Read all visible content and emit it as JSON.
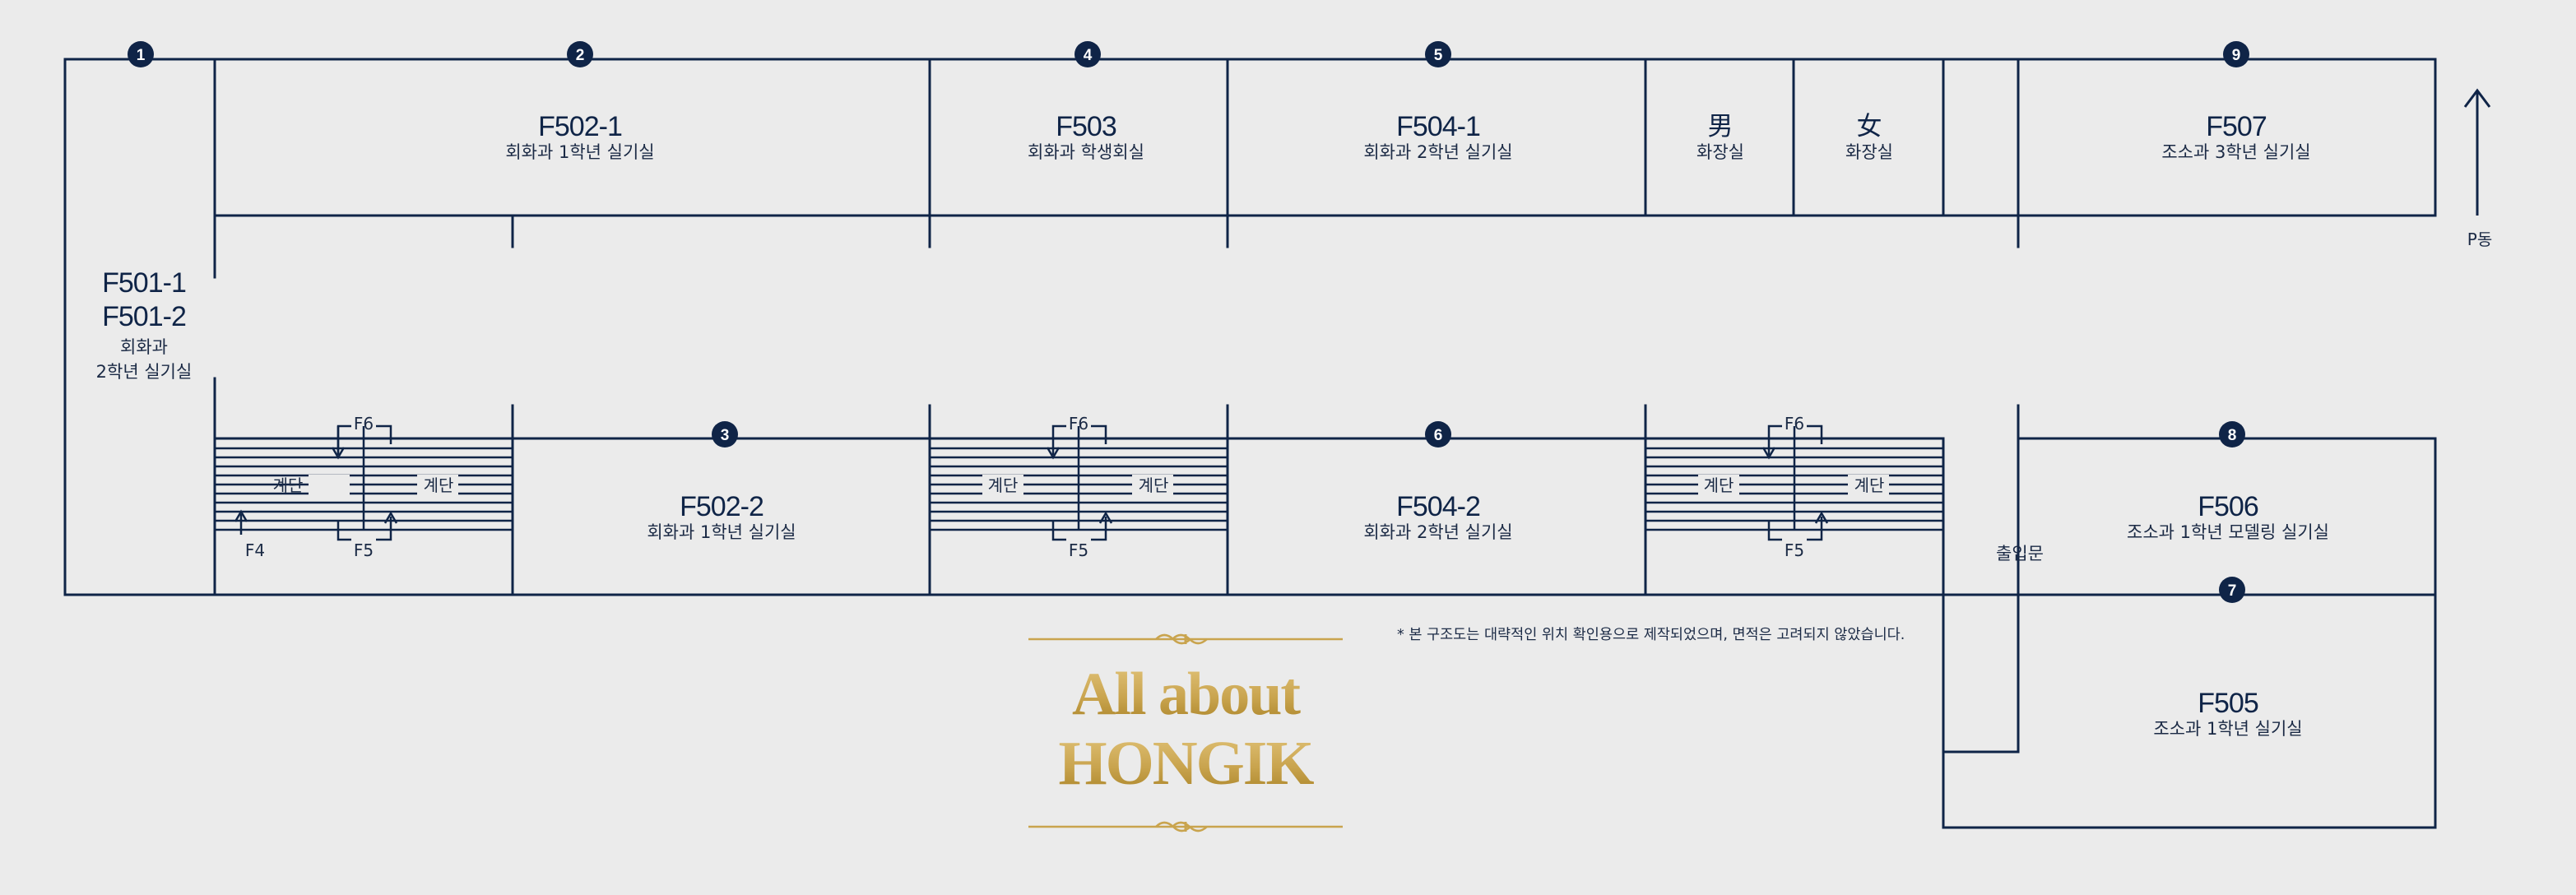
{
  "rooms": {
    "f501": {
      "code1": "F501-1",
      "code2": "F501-2",
      "sub1": "회화과",
      "sub2": "2학년 실기실"
    },
    "f502_1": {
      "code": "F502-1",
      "sub": "회화과 1학년 실기실"
    },
    "f503": {
      "code": "F503",
      "sub": "회화과 학생회실"
    },
    "f504_1": {
      "code": "F504-1",
      "sub": "회화과 2학년 실기실"
    },
    "restroom_m": {
      "symbol": "男",
      "sub": "화장실"
    },
    "restroom_f": {
      "symbol": "女",
      "sub": "화장실"
    },
    "f507": {
      "code": "F507",
      "sub": "조소과 3학년 실기실"
    },
    "f502_2": {
      "code": "F502-2",
      "sub": "회화과 1학년 실기실"
    },
    "f504_2": {
      "code": "F504-2",
      "sub": "회화과 2학년 실기실"
    },
    "f506": {
      "code": "F506",
      "sub": "조소과 1학년 모델링 실기실"
    },
    "f505": {
      "code": "F505",
      "sub": "조소과 1학년 실기실"
    }
  },
  "badges": {
    "b1": "1",
    "b2": "2",
    "b3": "3",
    "b4": "4",
    "b5": "5",
    "b6": "6",
    "b7": "7",
    "b8": "8",
    "b9": "9"
  },
  "stairs": {
    "s1": {
      "up": "F6",
      "down": "F5",
      "left": "계단",
      "right": "계단",
      "extra": "F4"
    },
    "s2": {
      "up": "F6",
      "down": "F5",
      "left": "계단",
      "right": "계단"
    },
    "s3": {
      "up": "F6",
      "down": "F5",
      "left": "계단",
      "right": "계단"
    }
  },
  "entrance": "출입문",
  "direction": "P동",
  "note": "* 본 구조도는 대략적인 위치 확인용으로 제작되었으며, 면적은 고려되지 않았습니다.",
  "logo": {
    "line1": "All about",
    "line2": "HONGIK"
  },
  "colors": {
    "line": "#0f2447",
    "background": "#ebebeb",
    "gold_light": "#e0c278",
    "gold_dark": "#a98224"
  }
}
